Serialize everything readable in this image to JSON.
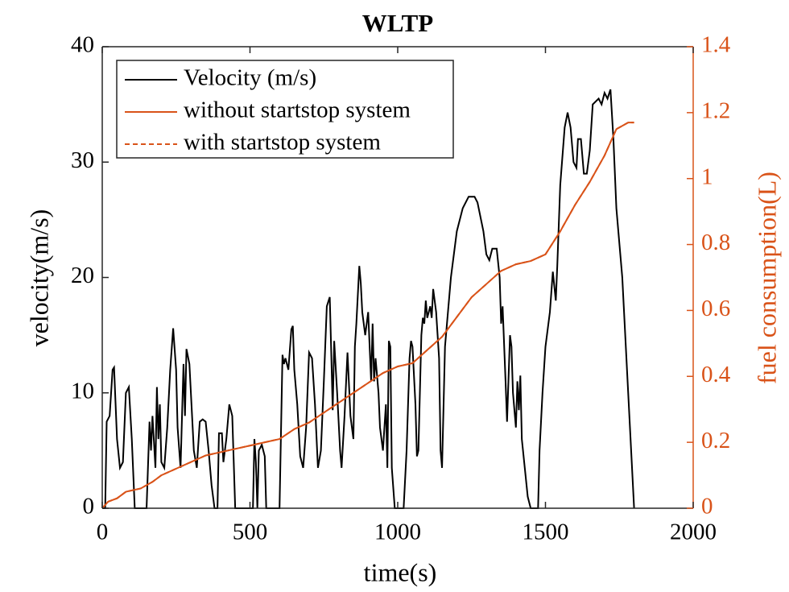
{
  "chart_data": {
    "type": "line",
    "title": "WLTP",
    "xlabel": "time(s)",
    "ylabel": "velocity(m/s)",
    "y2label": "fuel consumption(L)",
    "xlim": [
      0,
      2000
    ],
    "xticks": [
      0,
      500,
      1000,
      1500,
      2000
    ],
    "ylim": [
      0,
      40
    ],
    "yticks": [
      0,
      10,
      20,
      30,
      40
    ],
    "y2lim": [
      0,
      1.4
    ],
    "y2ticks": [
      0,
      0.2,
      0.4,
      0.6,
      0.8,
      1,
      1.2,
      1.4
    ],
    "y2color": "#d95319",
    "legend": "upper left",
    "series": [
      {
        "name": "Velocity (m/s)",
        "color": "#000000",
        "dash": false,
        "x": [
          0,
          10,
          15,
          25,
          35,
          40,
          50,
          60,
          70,
          80,
          90,
          100,
          110,
          150,
          160,
          165,
          170,
          180,
          185,
          190,
          195,
          200,
          210,
          220,
          230,
          240,
          250,
          255,
          265,
          275,
          280,
          285,
          295,
          300,
          310,
          320,
          330,
          340,
          350,
          360,
          370,
          380,
          390,
          395,
          405,
          410,
          420,
          430,
          440,
          450,
          510,
          515,
          520,
          525,
          530,
          540,
          550,
          555,
          600,
          610,
          615,
          620,
          630,
          640,
          645,
          650,
          660,
          670,
          680,
          690,
          700,
          710,
          720,
          730,
          740,
          750,
          760,
          770,
          775,
          780,
          785,
          795,
          805,
          810,
          820,
          830,
          840,
          850,
          855,
          860,
          870,
          875,
          880,
          890,
          900,
          910,
          915,
          920,
          925,
          935,
          940,
          950,
          960,
          965,
          970,
          975,
          980,
          990,
          1020,
          1030,
          1040,
          1045,
          1050,
          1060,
          1065,
          1070,
          1080,
          1085,
          1090,
          1095,
          1100,
          1110,
          1115,
          1120,
          1130,
          1140,
          1145,
          1150,
          1160,
          1180,
          1200,
          1220,
          1240,
          1260,
          1270,
          1290,
          1300,
          1310,
          1320,
          1335,
          1345,
          1350,
          1355,
          1365,
          1370,
          1380,
          1385,
          1390,
          1400,
          1405,
          1410,
          1415,
          1420,
          1430,
          1440,
          1450,
          1475,
          1480,
          1490,
          1500,
          1515,
          1525,
          1535,
          1540,
          1550,
          1565,
          1575,
          1585,
          1595,
          1605,
          1610,
          1620,
          1630,
          1640,
          1650,
          1660,
          1680,
          1690,
          1700,
          1710,
          1720,
          1730,
          1740,
          1760,
          1780,
          1800
        ],
        "values": [
          0,
          0,
          7.5,
          8,
          12,
          12.2,
          6,
          3.5,
          4,
          10,
          10.5,
          6,
          0,
          0,
          7.5,
          5,
          8,
          3.5,
          10.5,
          6,
          9,
          4,
          3.5,
          7,
          12,
          15.6,
          12,
          7,
          3.5,
          12.5,
          8,
          13.8,
          12.5,
          10,
          5,
          3.5,
          7.5,
          7.7,
          7.5,
          5,
          2,
          0,
          0,
          6.5,
          6.5,
          4,
          6,
          9,
          8,
          0,
          0,
          6,
          4,
          0,
          5,
          5.5,
          4.5,
          0,
          0,
          13.3,
          12.5,
          13,
          12,
          15.5,
          15.8,
          12,
          9,
          4.5,
          3.5,
          7,
          13.5,
          13,
          9,
          3.5,
          5,
          11,
          17.5,
          18.3,
          13.5,
          8.5,
          14.5,
          10,
          5,
          3.5,
          8,
          13.5,
          8,
          6,
          14,
          16,
          21,
          19.5,
          17,
          15,
          17,
          11,
          16,
          11,
          13,
          10,
          7,
          5,
          9,
          3.5,
          14.5,
          14,
          3.5,
          0,
          0,
          5,
          13,
          14.5,
          14,
          9,
          4.5,
          5,
          15,
          16.5,
          16,
          18,
          16.5,
          17.5,
          16.5,
          19,
          17,
          13,
          5,
          3.5,
          14,
          20,
          24,
          26,
          27,
          27,
          26.5,
          24,
          22,
          21.5,
          22.5,
          22.5,
          20,
          16,
          17.5,
          11,
          7.5,
          15,
          14,
          10,
          7,
          11,
          8.5,
          11.5,
          6,
          3.5,
          1,
          0,
          0,
          5,
          10,
          14,
          17,
          20.5,
          18,
          21,
          28,
          33,
          34.3,
          33,
          30,
          29.5,
          32,
          32,
          29,
          29,
          31,
          35,
          35.5,
          35,
          36,
          35.5,
          36.3,
          32,
          26,
          20,
          10,
          0
        ]
      },
      {
        "name": "without startstop system",
        "color": "#d95319",
        "dash": false,
        "axis": "y2",
        "x": [
          0,
          20,
          50,
          80,
          130,
          170,
          200,
          250,
          300,
          350,
          400,
          450,
          500,
          550,
          600,
          650,
          700,
          750,
          800,
          850,
          900,
          950,
          1000,
          1050,
          1100,
          1150,
          1200,
          1250,
          1300,
          1350,
          1400,
          1450,
          1500,
          1550,
          1600,
          1650,
          1700,
          1740,
          1760,
          1780,
          1800
        ],
        "values": [
          0,
          0.02,
          0.03,
          0.05,
          0.06,
          0.08,
          0.1,
          0.12,
          0.14,
          0.16,
          0.17,
          0.18,
          0.19,
          0.2,
          0.21,
          0.24,
          0.26,
          0.29,
          0.32,
          0.35,
          0.38,
          0.41,
          0.43,
          0.44,
          0.48,
          0.52,
          0.58,
          0.64,
          0.68,
          0.72,
          0.74,
          0.75,
          0.77,
          0.84,
          0.92,
          0.99,
          1.07,
          1.15,
          1.16,
          1.17,
          1.17
        ]
      },
      {
        "name": "with startstop system",
        "color": "#d95319",
        "dash": true,
        "axis": "y2",
        "x": [
          0,
          20,
          50,
          80,
          130,
          170,
          200,
          250,
          300,
          350,
          400,
          450,
          500,
          550,
          600,
          650,
          700,
          750,
          800,
          850,
          900,
          950,
          1000,
          1050,
          1100,
          1150,
          1200,
          1250,
          1300,
          1350,
          1400,
          1450,
          1500,
          1550,
          1600,
          1650,
          1700,
          1740,
          1760,
          1780,
          1800
        ],
        "values": [
          0,
          0.02,
          0.03,
          0.05,
          0.06,
          0.08,
          0.1,
          0.12,
          0.14,
          0.16,
          0.17,
          0.18,
          0.19,
          0.2,
          0.21,
          0.24,
          0.26,
          0.29,
          0.32,
          0.35,
          0.38,
          0.41,
          0.43,
          0.44,
          0.48,
          0.52,
          0.58,
          0.64,
          0.68,
          0.72,
          0.74,
          0.75,
          0.77,
          0.84,
          0.92,
          0.99,
          1.07,
          1.15,
          1.16,
          1.17,
          1.17
        ]
      }
    ]
  }
}
